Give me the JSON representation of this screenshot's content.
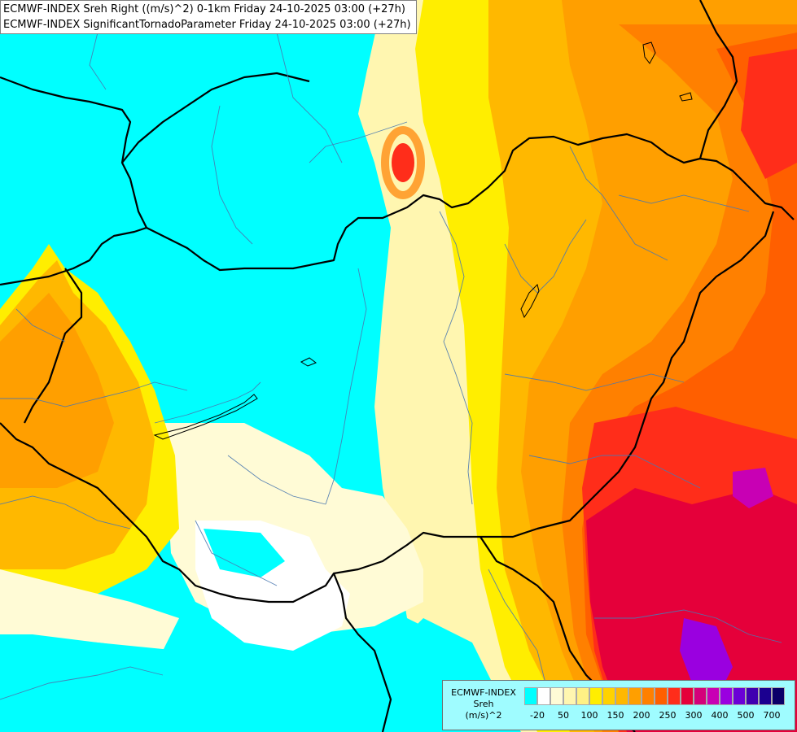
{
  "title": {
    "line1": "ECMWF-INDEX Sreh Right ((m/s)^2) 0-1km Friday 24-10-2025 03:00 (+27h)",
    "line2": "ECMWF-INDEX SignificantTornadoParameter Friday 24-10-2025 03:00 (+27h)"
  },
  "legend": {
    "label_line1": "ECMWF-INDEX",
    "label_line2": "Sreh",
    "label_line3": "(m/s)^2",
    "colors": [
      "#00ffff",
      "#ffffff",
      "#fffbd6",
      "#fff6b0",
      "#fff185",
      "#ffee00",
      "#ffd200",
      "#ffb800",
      "#ff9f00",
      "#ff8000",
      "#ff5f00",
      "#ff2d1a",
      "#e5003a",
      "#d4007a",
      "#c800b4",
      "#9a00e0",
      "#6a00d6",
      "#3f00b0",
      "#1b0090",
      "#0a0068"
    ],
    "ticks": [
      "-20",
      "50",
      "100",
      "150",
      "200",
      "250",
      "300",
      "400",
      "500",
      "700"
    ]
  },
  "fields": {
    "background": "#00ffff",
    "border_color": "#000000",
    "river_color": "#4a78b0"
  }
}
